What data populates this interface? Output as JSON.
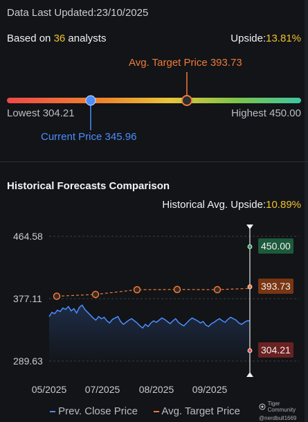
{
  "header": {
    "updated_label": "Data Last Updated:",
    "updated_date": "23/10/2025",
    "based_prefix": "Based on ",
    "analyst_count": "36",
    "based_suffix": " analysts",
    "upside_label": "Upside:",
    "upside_value": "13.81%"
  },
  "range": {
    "avg_label": "Avg. Target Price",
    "avg_value": "393.73",
    "lowest_label": "Lowest",
    "lowest_value": "304.21",
    "highest_label": "Highest",
    "highest_value": "450.00",
    "current_label": "Current Price",
    "current_value": "345.96",
    "low": 304.21,
    "high": 450.0,
    "current": 345.96,
    "avg": 393.73
  },
  "historical": {
    "title": "Historical Forecasts Comparison",
    "upside_label": "Historical Avg. Upside:",
    "upside_value": "10.89%"
  },
  "tags": {
    "high": "450.00",
    "avg": "393.73",
    "low": "304.21"
  },
  "colors": {
    "high_tag": "#1d5a3c",
    "avg_tag": "#7a3512",
    "low_tag": "#6a2121",
    "price_line": "#4c8dff",
    "target_line": "#f07a3a"
  },
  "chart_data": {
    "type": "line",
    "y_ticks": [
      "464.58",
      "377.11",
      "289.63"
    ],
    "x_ticks": [
      "05/2025",
      "07/2025",
      "08/2025",
      "09/2025"
    ],
    "ylim": [
      289.63,
      464.58
    ],
    "legend": [
      "Prev. Close Price",
      "Avg. Target Price"
    ],
    "series": [
      {
        "name": "Prev. Close Price",
        "values": [
          352,
          358,
          356,
          361,
          359,
          364,
          362,
          366,
          360,
          363,
          357,
          365,
          368,
          362,
          358,
          354,
          350,
          347,
          352,
          349,
          351,
          346,
          343,
          348,
          350,
          352,
          345,
          341,
          344,
          347,
          349,
          346,
          343,
          339,
          336,
          341,
          338,
          343,
          346,
          344,
          347,
          350,
          348,
          345,
          342,
          346,
          349,
          344,
          341,
          339,
          343,
          347,
          350,
          348,
          346,
          343,
          345,
          340,
          338,
          342,
          344,
          347,
          349,
          346,
          344,
          348,
          351,
          349,
          347,
          343,
          341,
          344,
          346,
          345.96
        ]
      },
      {
        "name": "Avg. Target Price",
        "values": [
          380.5,
          383.0,
          389.6,
          390.0,
          389.7,
          391.5
        ]
      }
    ]
  },
  "brand": {
    "name": "Tiger Community",
    "handle": "@nerdbull1669"
  }
}
